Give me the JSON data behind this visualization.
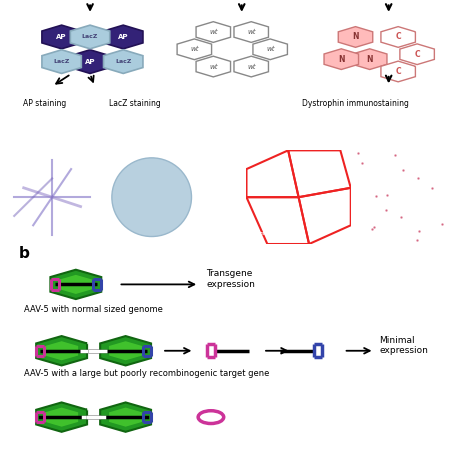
{
  "bg_color": "#ffffff",
  "panel_b_label": "b",
  "row1_label": "AAV-5 with normal sized genome",
  "row2_label": "AAV-5 with a large but poorly recombinogenic target gene",
  "transgene_text": "Transgene\nexpression",
  "minimal_text": "Minimal\nexpression",
  "magenta_color": "#cc3399",
  "blue_color": "#3344aa",
  "text_color": "#000000",
  "fig_width": 4.74,
  "fig_height": 4.74,
  "hex_green_outer": "#229922",
  "hex_green_inner": "#55dd33",
  "hex_green_edge": "#116611",
  "ap_hex_color": "#332266",
  "ap_hex_light": "#6644aa",
  "lacz_hex_color": "#99ccdd",
  "wt_hex_color": "#ffffff",
  "wt_hex_edge": "#888888",
  "nc_hex_pink": "#ffaaaa",
  "nc_hex_edge": "#cc6666",
  "nc_hex_white": "#ffffff"
}
